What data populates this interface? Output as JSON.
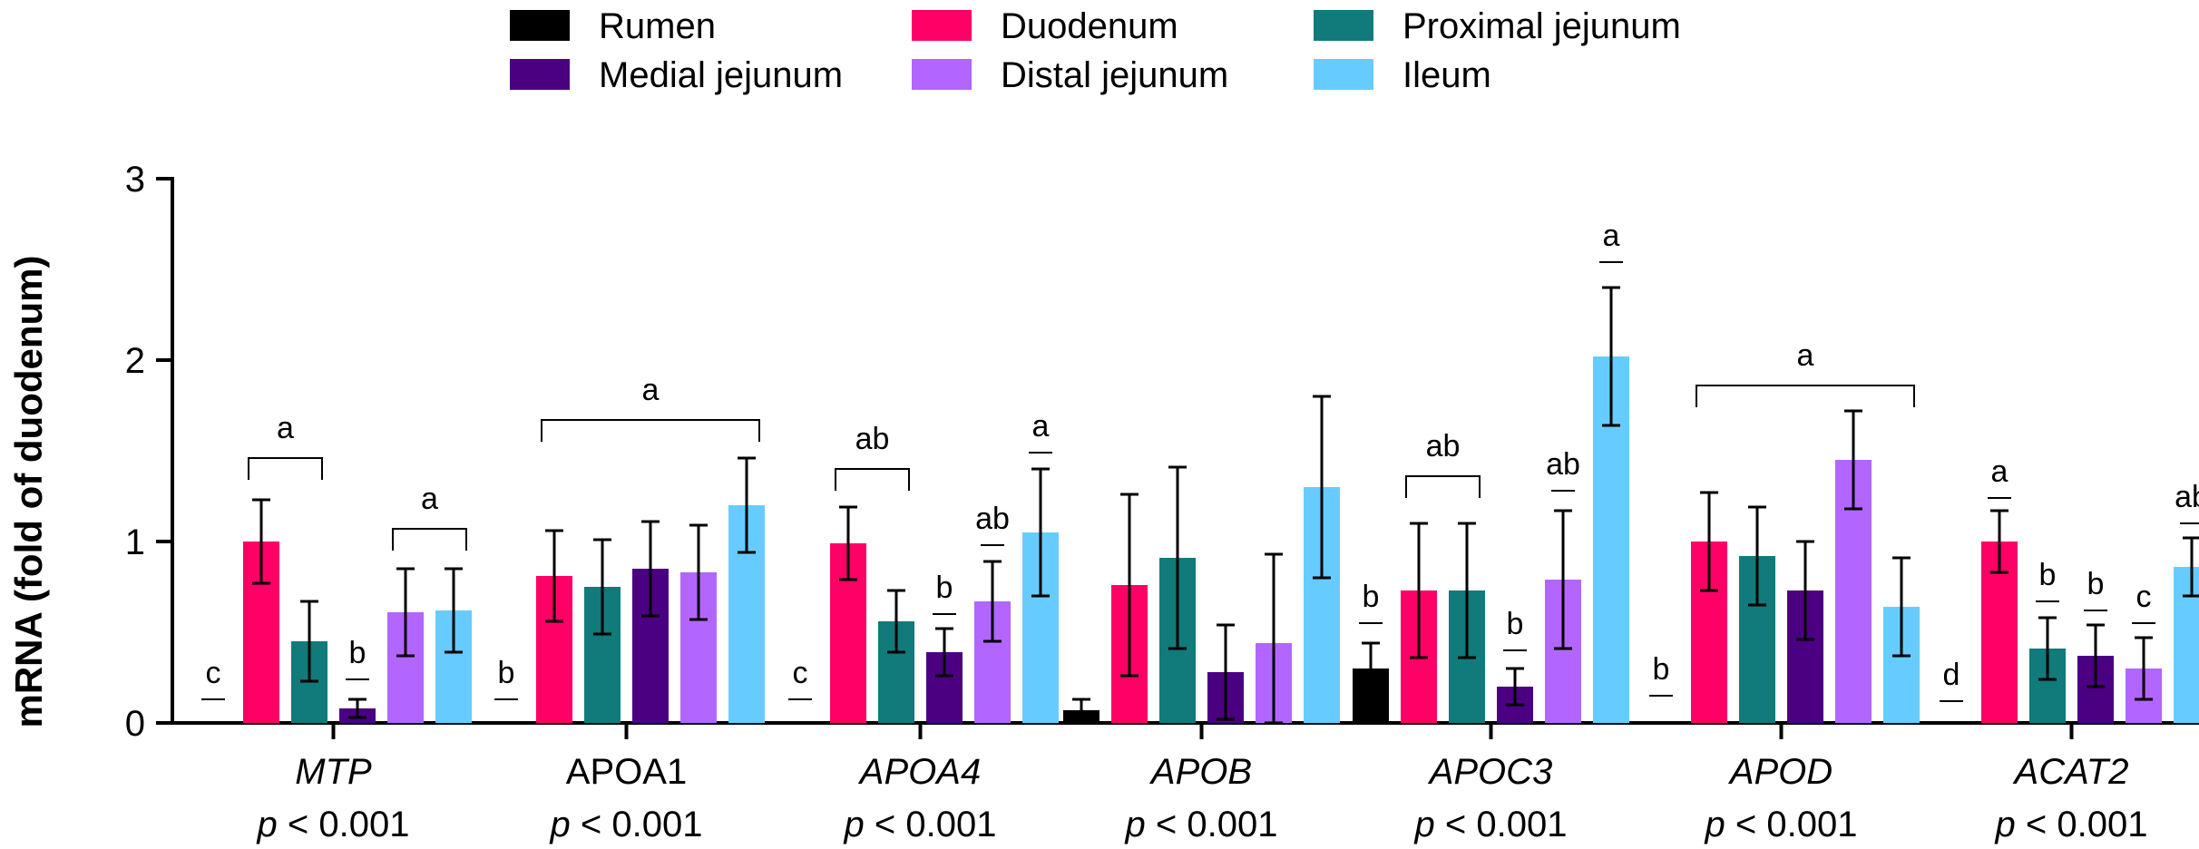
{
  "chart_data": {
    "type": "bar",
    "title": "",
    "xlabel": "",
    "ylabel": "mRNA (fold of duodenum)",
    "ylim": [
      0,
      3
    ],
    "yticks": [
      "0",
      "1",
      "2",
      "3"
    ],
    "grid": false,
    "legend_position": "top",
    "series_names": [
      "Rumen",
      "Duodenum",
      "Proximal jejunum",
      "Medial jejunum",
      "Distal jejunum",
      "Ileum"
    ],
    "colors": {
      "Rumen": "#000000",
      "Duodenum": "#ff0066",
      "Proximal jejunum": "#117a7a",
      "Medial jejunum": "#4b0082",
      "Distal jejunum": "#b266ff",
      "Ileum": "#66ccff"
    },
    "groups": [
      {
        "gene": "MTP",
        "italic": true,
        "pvalue_prefix": "p",
        "pvalue_rest": " < 0.001",
        "bars": [
          {
            "series": "Rumen",
            "value": 0.0,
            "err": 0.0,
            "letter": "c",
            "dash": 0.13
          },
          {
            "series": "Duodenum",
            "value": 1.0,
            "err": 0.23,
            "letter": "",
            "dash": null
          },
          {
            "series": "Proximal jejunum",
            "value": 0.45,
            "err": 0.22,
            "letter": "",
            "dash": null
          },
          {
            "series": "Medial jejunum",
            "value": 0.08,
            "err": 0.05,
            "letter": "b",
            "dash": 0.24
          },
          {
            "series": "Distal jejunum",
            "value": 0.61,
            "err": 0.24,
            "letter": "",
            "dash": null
          },
          {
            "series": "Ileum",
            "value": 0.62,
            "err": 0.23,
            "letter": "",
            "dash": null
          }
        ],
        "brackets": [
          {
            "from": 1,
            "to": 2,
            "level": 1.46,
            "label": "a"
          },
          {
            "from": 4,
            "to": 5,
            "level": 1.07,
            "label": "a"
          }
        ]
      },
      {
        "gene": "APOA1",
        "italic": false,
        "pvalue_prefix": "p",
        "pvalue_rest": " < 0.001",
        "bars": [
          {
            "series": "Rumen",
            "value": 0.01,
            "err": 0.0,
            "letter": "b",
            "dash": 0.13
          },
          {
            "series": "Duodenum",
            "value": 0.81,
            "err": 0.25,
            "letter": "",
            "dash": null
          },
          {
            "series": "Proximal jejunum",
            "value": 0.75,
            "err": 0.26,
            "letter": "",
            "dash": null
          },
          {
            "series": "Medial jejunum",
            "value": 0.85,
            "err": 0.26,
            "letter": "",
            "dash": null
          },
          {
            "series": "Distal jejunum",
            "value": 0.83,
            "err": 0.26,
            "letter": "",
            "dash": null
          },
          {
            "series": "Ileum",
            "value": 1.2,
            "err": 0.26,
            "letter": "",
            "dash": null
          }
        ],
        "brackets": [
          {
            "from": 1,
            "to": 5,
            "level": 1.67,
            "label": "a"
          }
        ]
      },
      {
        "gene": "APOA4",
        "italic": true,
        "pvalue_prefix": "p",
        "pvalue_rest": " < 0.001",
        "bars": [
          {
            "series": "Rumen",
            "value": 0.01,
            "err": 0.0,
            "letter": "c",
            "dash": 0.13
          },
          {
            "series": "Duodenum",
            "value": 0.99,
            "err": 0.2,
            "letter": "",
            "dash": null
          },
          {
            "series": "Proximal jejunum",
            "value": 0.56,
            "err": 0.17,
            "letter": "",
            "dash": null
          },
          {
            "series": "Medial jejunum",
            "value": 0.39,
            "err": 0.13,
            "letter": "b",
            "dash": 0.6
          },
          {
            "series": "Distal jejunum",
            "value": 0.67,
            "err": 0.22,
            "letter": "ab",
            "dash": 0.98
          },
          {
            "series": "Ileum",
            "value": 1.05,
            "err": 0.35,
            "letter": "a",
            "dash": 1.49
          }
        ],
        "brackets": [
          {
            "from": 1,
            "to": 2,
            "level": 1.4,
            "label": "ab"
          }
        ]
      },
      {
        "gene": "APOB",
        "italic": true,
        "pvalue_prefix": "p",
        "pvalue_rest": " < 0.001",
        "bars": [
          {
            "series": "Rumen",
            "value": 0.07,
            "err": 0.06,
            "letter": "",
            "dash": null
          },
          {
            "series": "Duodenum",
            "value": 0.76,
            "err": 0.5,
            "letter": "",
            "dash": null
          },
          {
            "series": "Proximal jejunum",
            "value": 0.91,
            "err": 0.5,
            "letter": "",
            "dash": null
          },
          {
            "series": "Medial jejunum",
            "value": 0.28,
            "err": 0.26,
            "letter": "",
            "dash": null
          },
          {
            "series": "Distal jejunum",
            "value": 0.44,
            "err": 0.49,
            "letter": "",
            "dash": null
          },
          {
            "series": "Ileum",
            "value": 1.3,
            "err": 0.5,
            "letter": "",
            "dash": null
          }
        ],
        "brackets": []
      },
      {
        "gene": "APOC3",
        "italic": true,
        "pvalue_prefix": "p",
        "pvalue_rest": " < 0.001",
        "bars": [
          {
            "series": "Rumen",
            "value": 0.3,
            "err": 0.14,
            "letter": "b",
            "dash": 0.55
          },
          {
            "series": "Duodenum",
            "value": 0.73,
            "err": 0.37,
            "letter": "",
            "dash": null
          },
          {
            "series": "Proximal jejunum",
            "value": 0.73,
            "err": 0.37,
            "letter": "",
            "dash": null
          },
          {
            "series": "Medial jejunum",
            "value": 0.2,
            "err": 0.1,
            "letter": "b",
            "dash": 0.4
          },
          {
            "series": "Distal jejunum",
            "value": 0.79,
            "err": 0.38,
            "letter": "ab",
            "dash": 1.28
          },
          {
            "series": "Ileum",
            "value": 2.02,
            "err": 0.38,
            "letter": "a",
            "dash": 2.54
          }
        ],
        "brackets": [
          {
            "from": 1,
            "to": 2,
            "level": 1.36,
            "label": "ab"
          }
        ]
      },
      {
        "gene": "APOD",
        "italic": true,
        "pvalue_prefix": "p",
        "pvalue_rest": " < 0.001",
        "bars": [
          {
            "series": "Rumen",
            "value": 0.0,
            "err": 0.0,
            "letter": "b",
            "dash": 0.15
          },
          {
            "series": "Duodenum",
            "value": 1.0,
            "err": 0.27,
            "letter": "",
            "dash": null
          },
          {
            "series": "Proximal jejunum",
            "value": 0.92,
            "err": 0.27,
            "letter": "",
            "dash": null
          },
          {
            "series": "Medial jejunum",
            "value": 0.73,
            "err": 0.27,
            "letter": "",
            "dash": null
          },
          {
            "series": "Distal jejunum",
            "value": 1.45,
            "err": 0.27,
            "letter": "",
            "dash": null
          },
          {
            "series": "Ileum",
            "value": 0.64,
            "err": 0.27,
            "letter": "",
            "dash": null
          }
        ],
        "brackets": [
          {
            "from": 1,
            "to": 5,
            "level": 1.86,
            "label": "a"
          }
        ]
      },
      {
        "gene": "ACAT2",
        "italic": true,
        "pvalue_prefix": "p",
        "pvalue_rest": " < 0.001",
        "bars": [
          {
            "series": "Rumen",
            "value": 0.01,
            "err": 0.0,
            "letter": "d",
            "dash": 0.12
          },
          {
            "series": "Duodenum",
            "value": 1.0,
            "err": 0.17,
            "letter": "a",
            "dash": 1.24
          },
          {
            "series": "Proximal jejunum",
            "value": 0.41,
            "err": 0.17,
            "letter": "b",
            "dash": 0.67
          },
          {
            "series": "Medial jejunum",
            "value": 0.37,
            "err": 0.17,
            "letter": "b",
            "dash": 0.62
          },
          {
            "series": "Distal jejunum",
            "value": 0.3,
            "err": 0.17,
            "letter": "c",
            "dash": 0.55
          },
          {
            "series": "Ileum",
            "value": 0.86,
            "err": 0.16,
            "letter": "ab",
            "dash": 1.1
          }
        ],
        "brackets": []
      }
    ]
  }
}
